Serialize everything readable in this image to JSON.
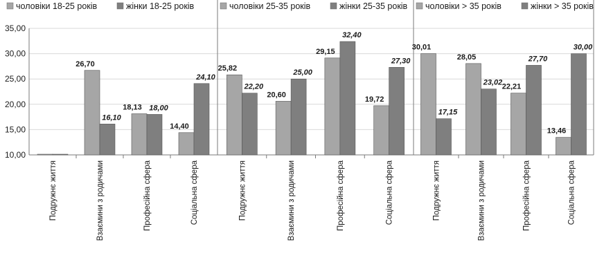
{
  "chart_data": [
    {
      "type": "bar",
      "categories": [
        "Подружнє життя",
        "Взаємини з родичами",
        "Професійна сфера",
        "Соціальна сфера"
      ],
      "series": [
        {
          "name": "чоловіки 18-25 років",
          "values": [
            10.0,
            26.7,
            18.13,
            14.4
          ],
          "labels": [
            "",
            "26,70",
            "18,13",
            "14,40"
          ],
          "color": "#a6a6a6"
        },
        {
          "name": "жінки 18-25 років",
          "values": [
            10.0,
            16.1,
            18.0,
            24.1
          ],
          "labels": [
            "",
            "16,10",
            "18,00",
            "24,10"
          ],
          "color": "#7f7f7f"
        }
      ],
      "ylim": [
        10,
        35
      ],
      "yticks": [
        "10,00",
        "15,00",
        "20,00",
        "25,00",
        "30,00",
        "35,00"
      ],
      "grid": true,
      "legend": "top"
    },
    {
      "type": "bar",
      "categories": [
        "Подружнє життя",
        "Взаємини з родичами",
        "Професійна сфера",
        "Соціальна сфера"
      ],
      "series": [
        {
          "name": "чоловіки 25-35 років",
          "values": [
            25.82,
            20.6,
            29.15,
            19.72
          ],
          "labels": [
            "25,82",
            "20,60",
            "29,15",
            "19,72"
          ],
          "color": "#a6a6a6"
        },
        {
          "name": "жінки 25-35 років",
          "values": [
            22.2,
            25.0,
            32.4,
            27.3
          ],
          "labels": [
            "22,20",
            "25,00",
            "32,40",
            "27,30"
          ],
          "color": "#7f7f7f"
        }
      ],
      "ylim": [
        10,
        35
      ],
      "grid": true,
      "legend": "top"
    },
    {
      "type": "bar",
      "categories": [
        "Подружнє життя",
        "Взаємини з родичами",
        "Професійна сфера",
        "Соціальна сфера"
      ],
      "series": [
        {
          "name": "чоловіки > 35 років",
          "values": [
            30.01,
            28.05,
            22.21,
            13.46
          ],
          "labels": [
            "30,01",
            "28,05",
            "22,21",
            "13,46"
          ],
          "color": "#a6a6a6"
        },
        {
          "name": "жінки > 35 років",
          "values": [
            17.15,
            23.02,
            27.7,
            30.0
          ],
          "labels": [
            "17,15",
            "23,02",
            "27,70",
            "30,00"
          ],
          "color": "#7f7f7f"
        }
      ],
      "ylim": [
        10,
        35
      ],
      "grid": true,
      "legend": "top"
    }
  ]
}
